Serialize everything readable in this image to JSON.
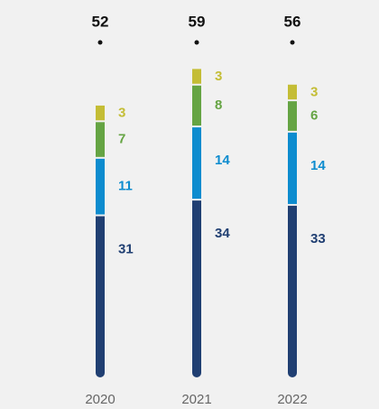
{
  "chart_data": {
    "type": "stacked_bar",
    "categories": [
      "2020",
      "2021",
      "2022"
    ],
    "totals": [
      52,
      59,
      56
    ],
    "series": [
      {
        "color": "#203f72",
        "values": [
          31,
          34,
          33
        ]
      },
      {
        "color": "#0d8ccf",
        "values": [
          11,
          14,
          14
        ]
      },
      {
        "color": "#65a443",
        "values": [
          7,
          8,
          6
        ]
      },
      {
        "color": "#c4bd35",
        "values": [
          3,
          3,
          3
        ]
      }
    ]
  }
}
